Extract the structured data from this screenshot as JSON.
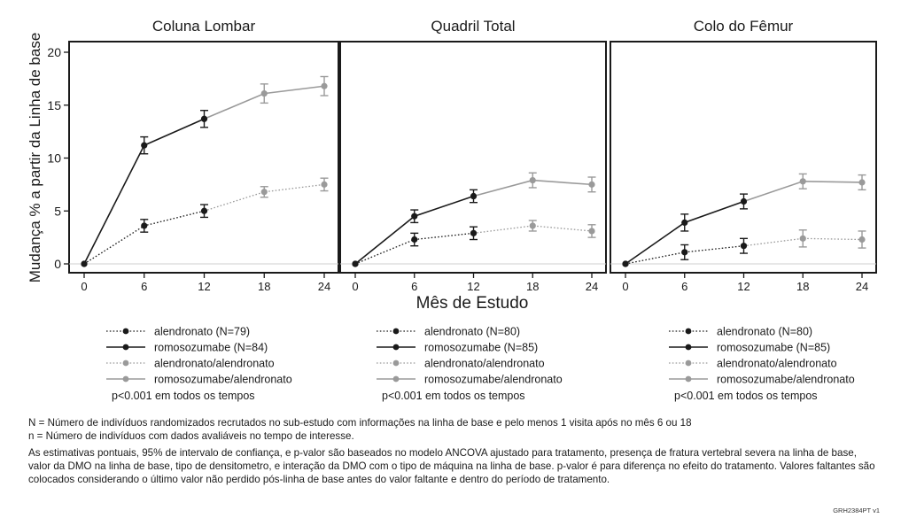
{
  "chart_data": {
    "type": "line",
    "ylabel": "Mudança % a partir da Linha de base",
    "xlabel": "Mês de Estudo",
    "x_ticks": [
      0,
      6,
      12,
      18,
      24
    ],
    "y_ticks": [
      0,
      5,
      10,
      15,
      20
    ],
    "xlim": [
      -1,
      25
    ],
    "ylim": [
      -1,
      21
    ],
    "colors": {
      "dark": "#1a1a1a",
      "light": "#9a9a9a"
    },
    "panels": [
      {
        "title": "Coluna Lombar",
        "show_y_axis": true,
        "series": [
          {
            "name": "alendronato (N=79)",
            "style": "dotted",
            "color": "#1a1a1a",
            "points": [
              {
                "x": 0,
                "y": 0,
                "err": 0
              },
              {
                "x": 6,
                "y": 3.6,
                "err": 0.6
              },
              {
                "x": 12,
                "y": 5.0,
                "err": 0.6
              }
            ]
          },
          {
            "name": "romosozumabe (N=84)",
            "style": "solid",
            "color": "#1a1a1a",
            "points": [
              {
                "x": 0,
                "y": 0,
                "err": 0
              },
              {
                "x": 6,
                "y": 11.2,
                "err": 0.8
              },
              {
                "x": 12,
                "y": 13.7,
                "err": 0.8
              }
            ]
          },
          {
            "name": "alendronato/alendronato",
            "style": "dotted",
            "color": "#9a9a9a",
            "points": [
              {
                "x": 12,
                "y": 5.0,
                "err": 0
              },
              {
                "x": 18,
                "y": 6.8,
                "err": 0.5
              },
              {
                "x": 24,
                "y": 7.5,
                "err": 0.6
              }
            ]
          },
          {
            "name": "romosozumabe/alendronato",
            "style": "solid",
            "color": "#9a9a9a",
            "points": [
              {
                "x": 12,
                "y": 13.7,
                "err": 0
              },
              {
                "x": 18,
                "y": 16.1,
                "err": 0.9
              },
              {
                "x": 24,
                "y": 16.8,
                "err": 0.9
              }
            ]
          }
        ],
        "pvalue": "p<0.001 em todos os tempos"
      },
      {
        "title": "Quadril Total",
        "show_y_axis": false,
        "series": [
          {
            "name": "alendronato (N=80)",
            "style": "dotted",
            "color": "#1a1a1a",
            "points": [
              {
                "x": 0,
                "y": 0,
                "err": 0
              },
              {
                "x": 6,
                "y": 2.3,
                "err": 0.6
              },
              {
                "x": 12,
                "y": 2.9,
                "err": 0.6
              }
            ]
          },
          {
            "name": "romosozumabe (N=85)",
            "style": "solid",
            "color": "#1a1a1a",
            "points": [
              {
                "x": 0,
                "y": 0,
                "err": 0
              },
              {
                "x": 6,
                "y": 4.5,
                "err": 0.6
              },
              {
                "x": 12,
                "y": 6.4,
                "err": 0.6
              }
            ]
          },
          {
            "name": "alendronato/alendronato",
            "style": "dotted",
            "color": "#9a9a9a",
            "points": [
              {
                "x": 12,
                "y": 2.9,
                "err": 0
              },
              {
                "x": 18,
                "y": 3.6,
                "err": 0.5
              },
              {
                "x": 24,
                "y": 3.1,
                "err": 0.6
              }
            ]
          },
          {
            "name": "romosozumabe/alendronato",
            "style": "solid",
            "color": "#9a9a9a",
            "points": [
              {
                "x": 12,
                "y": 6.4,
                "err": 0
              },
              {
                "x": 18,
                "y": 7.9,
                "err": 0.7
              },
              {
                "x": 24,
                "y": 7.5,
                "err": 0.7
              }
            ]
          }
        ],
        "pvalue": "p<0.001 em todos os tempos"
      },
      {
        "title": "Colo do Fêmur",
        "show_y_axis": false,
        "series": [
          {
            "name": "alendronato (N=80)",
            "style": "dotted",
            "color": "#1a1a1a",
            "points": [
              {
                "x": 0,
                "y": 0,
                "err": 0
              },
              {
                "x": 6,
                "y": 1.1,
                "err": 0.7
              },
              {
                "x": 12,
                "y": 1.7,
                "err": 0.7
              }
            ]
          },
          {
            "name": "romosozumabe (N=85)",
            "style": "solid",
            "color": "#1a1a1a",
            "points": [
              {
                "x": 0,
                "y": 0,
                "err": 0
              },
              {
                "x": 6,
                "y": 3.9,
                "err": 0.8
              },
              {
                "x": 12,
                "y": 5.9,
                "err": 0.7
              }
            ]
          },
          {
            "name": "alendronato/alendronato",
            "style": "dotted",
            "color": "#9a9a9a",
            "points": [
              {
                "x": 12,
                "y": 1.7,
                "err": 0
              },
              {
                "x": 18,
                "y": 2.4,
                "err": 0.8
              },
              {
                "x": 24,
                "y": 2.3,
                "err": 0.8
              }
            ]
          },
          {
            "name": "romosozumabe/alendronato",
            "style": "solid",
            "color": "#9a9a9a",
            "points": [
              {
                "x": 12,
                "y": 5.9,
                "err": 0
              },
              {
                "x": 18,
                "y": 7.8,
                "err": 0.7
              },
              {
                "x": 24,
                "y": 7.7,
                "err": 0.7
              }
            ]
          }
        ],
        "pvalue": "p<0.001 em todos os tempos"
      }
    ]
  },
  "footnotes": {
    "line1": "N = Número de indivíduos randomizados recrutados no sub-estudo com informações na linha de base e pelo menos 1 visita após no mês 6 ou 18",
    "line2": "n = Número de indivíduos com dados avaliáveis no tempo de interesse.",
    "line3": "As estimativas pontuais, 95% de intervalo de confiança, e p-valor são baseados no modelo ANCOVA ajustado para tratamento, presença de fratura vertebral severa na linha de base, valor da DMO na linha de base, tipo de densitometro, e interação da DMO com o tipo de máquina na linha de base. p-valor é para diferença no efeito do tratamento. Valores faltantes são colocados considerando o último valor não perdido pós-linha de base antes do valor faltante e dentro do período de tratamento.",
    "code": "GRH2384PT v1"
  }
}
